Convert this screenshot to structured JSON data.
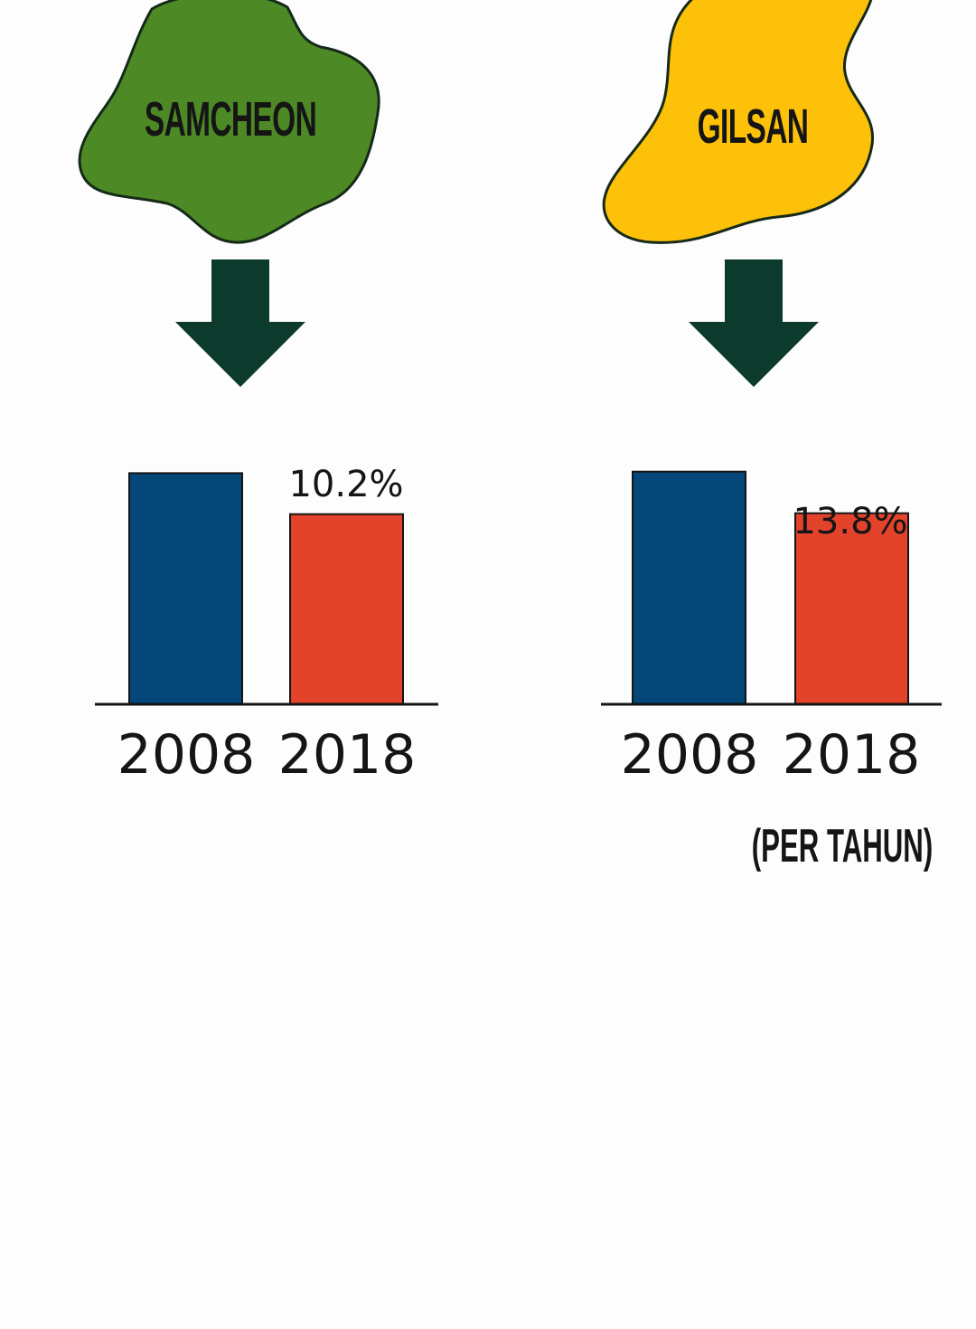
{
  "regions": [
    {
      "name": "SAMCHEON",
      "color": "#4d8a26"
    },
    {
      "name": "GILSAN",
      "color": "#fdc10a"
    }
  ],
  "note": "(PER TAHUN)",
  "colors": {
    "bar_2008": "#044778",
    "bar_2018": "#e3432a",
    "arrow": "#0c3a2c",
    "outline": "#152a18"
  },
  "chart_data": [
    {
      "type": "bar",
      "title": "SAMCHEON",
      "categories": [
        "2008",
        "2018"
      ],
      "values": [
        12.4,
        10.2
      ],
      "data_labels": [
        "",
        "10.2%"
      ],
      "ylim": [
        0,
        13
      ]
    },
    {
      "type": "bar",
      "title": "GILSAN",
      "categories": [
        "2008",
        "2018"
      ],
      "values": [
        16.8,
        13.8
      ],
      "data_labels": [
        "",
        "13.8%"
      ],
      "ylim": [
        0,
        17.5
      ]
    }
  ]
}
